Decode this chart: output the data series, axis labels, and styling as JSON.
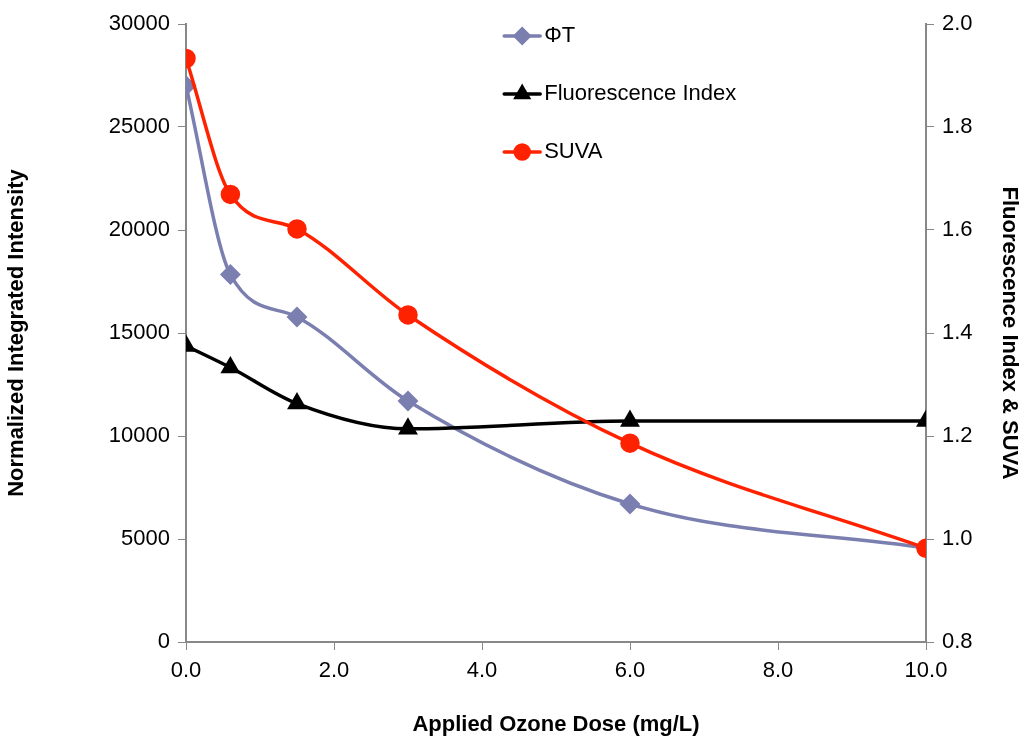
{
  "chart_data": {
    "type": "line",
    "xlabel": "Applied Ozone Dose (mg/L)",
    "ylabel": "Normalized Integrated Intensity",
    "y2label": "Fluorescence Index & SUVA",
    "x": [
      0,
      0.6,
      1.5,
      3,
      6,
      10
    ],
    "series": [
      {
        "name": "ΦT",
        "color": "#7b7fb0",
        "marker": "diamond",
        "values": [
          27000,
          17840,
          15780,
          11700,
          6700,
          4560
        ]
      },
      {
        "name": "Fluorescence Index",
        "color": "#000000",
        "marker": "triangle",
        "axis": "y2",
        "values": [
          1.375,
          1.333,
          1.263,
          1.214,
          1.229,
          1.229
        ]
      },
      {
        "name": "SUVA",
        "color": "#ff2200",
        "marker": "circle",
        "axis": "y2",
        "values": [
          1.933,
          1.669,
          1.602,
          1.435,
          1.186,
          0.982
        ]
      }
    ],
    "xlim": [
      0,
      10
    ],
    "xticks": [
      {
        "value": 0,
        "label": "0.0"
      },
      {
        "value": 2,
        "label": "2.0"
      },
      {
        "value": 4,
        "label": "4.0"
      },
      {
        "value": 6,
        "label": "6.0"
      },
      {
        "value": 8,
        "label": "8.0"
      },
      {
        "value": 10,
        "label": "10.0"
      }
    ],
    "ylim": [
      0,
      30000
    ],
    "yticks": [
      0,
      5000,
      10000,
      15000,
      20000,
      25000,
      30000
    ],
    "y2lim": [
      0.8,
      2.0
    ],
    "y2ticks": [
      {
        "value": 0.8,
        "label": "0.8"
      },
      {
        "value": 1.0,
        "label": "1.0"
      },
      {
        "value": 1.2,
        "label": "1.2"
      },
      {
        "value": 1.4,
        "label": "1.4"
      },
      {
        "value": 1.6,
        "label": "1.6"
      },
      {
        "value": 1.8,
        "label": "1.8"
      },
      {
        "value": 2.0,
        "label": "2.0"
      }
    ],
    "grid": false,
    "legend": "top",
    "line_style": "solid"
  }
}
